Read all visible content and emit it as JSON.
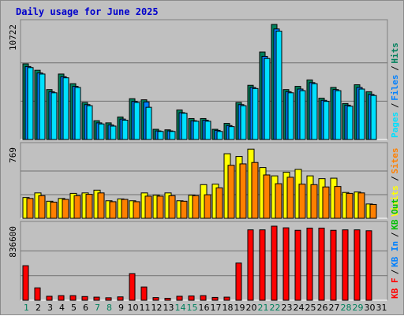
{
  "title": "Daily usage for June 2025",
  "colors": {
    "hits": "#00805c",
    "files": "#0080ff",
    "pages": "#00e0ff",
    "visits": "#ffff00",
    "sites": "#ff8000",
    "kbin": "#0080ff",
    "kbout": "#00c000",
    "kbf": "#ff0000",
    "bg": "#c0c0c0",
    "weekend": "#00805c",
    "weekday": "#000000"
  },
  "chart_data": [
    {
      "type": "bar",
      "name": "hits-files-pages",
      "x": [
        1,
        2,
        3,
        4,
        5,
        6,
        7,
        8,
        9,
        10,
        11,
        12,
        13,
        14,
        15,
        16,
        17,
        18,
        19,
        20,
        21,
        22,
        23,
        24,
        25,
        26,
        27,
        28,
        29,
        30,
        31
      ],
      "ymax_label": "10722",
      "ylim": [
        0,
        10722
      ],
      "legend": [
        "Pages",
        "Files",
        "Hits"
      ],
      "series": [
        {
          "name": "Hits",
          "values": [
            7050,
            6450,
            4650,
            6100,
            5200,
            3450,
            1750,
            1550,
            2100,
            3800,
            3700,
            950,
            900,
            2750,
            1950,
            1950,
            950,
            1500,
            3450,
            5050,
            8150,
            10722,
            4650,
            4950,
            5550,
            3850,
            4850,
            3350,
            5100,
            4450,
            0
          ]
        },
        {
          "name": "Files",
          "values": [
            6800,
            6200,
            4450,
            5850,
            4950,
            3250,
            1550,
            1350,
            1900,
            3550,
            3500,
            800,
            800,
            2500,
            1750,
            1800,
            850,
            1300,
            3250,
            4850,
            7750,
            10300,
            4450,
            4700,
            5300,
            3650,
            4650,
            3200,
            4850,
            4200,
            0
          ]
        },
        {
          "name": "Pages",
          "values": [
            6700,
            6100,
            4350,
            5750,
            4850,
            3150,
            1450,
            1250,
            1800,
            3450,
            3000,
            750,
            750,
            2450,
            1700,
            1700,
            750,
            1200,
            3150,
            4750,
            7550,
            10100,
            4350,
            4550,
            5200,
            3550,
            4550,
            3100,
            4700,
            4100,
            0
          ]
        }
      ]
    },
    {
      "type": "bar",
      "name": "visits-sites",
      "x": [
        1,
        2,
        3,
        4,
        5,
        6,
        7,
        8,
        9,
        10,
        11,
        12,
        13,
        14,
        15,
        16,
        17,
        18,
        19,
        20,
        21,
        22,
        23,
        24,
        25,
        26,
        27,
        28,
        29,
        30,
        31
      ],
      "ymax_label": "769",
      "ylim": [
        0,
        769
      ],
      "legend": [
        "Visits",
        "Sites"
      ],
      "series": [
        {
          "name": "Visits",
          "values": [
            225,
            275,
            185,
            215,
            270,
            275,
            305,
            190,
            210,
            190,
            275,
            250,
            275,
            190,
            250,
            365,
            370,
            700,
            670,
            750,
            550,
            460,
            500,
            530,
            460,
            430,
            435,
            280,
            285,
            155,
            0
          ]
        },
        {
          "name": "Sites",
          "values": [
            215,
            245,
            175,
            205,
            245,
            260,
            275,
            180,
            205,
            180,
            240,
            240,
            245,
            185,
            245,
            255,
            330,
            575,
            590,
            605,
            470,
            375,
            445,
            370,
            365,
            340,
            345,
            270,
            275,
            150,
            0
          ]
        }
      ]
    },
    {
      "type": "bar",
      "name": "kbin-kbout-kbf",
      "x": [
        1,
        2,
        3,
        4,
        5,
        6,
        7,
        8,
        9,
        10,
        11,
        12,
        13,
        14,
        15,
        16,
        17,
        18,
        19,
        20,
        21,
        22,
        23,
        24,
        25,
        26,
        27,
        28,
        29,
        30,
        31
      ],
      "ymax_label": "836600",
      "ylim": [
        0,
        836600
      ],
      "legend": [
        "KB F",
        "KB In",
        "KB Out"
      ],
      "series": [
        {
          "name": "KB F",
          "values": [
            390000,
            140000,
            45000,
            52000,
            52000,
            42000,
            35000,
            28000,
            38000,
            300000,
            150000,
            30000,
            22000,
            45000,
            48000,
            52000,
            32000,
            35000,
            420000,
            795000,
            795000,
            836600,
            818000,
            790000,
            815000,
            815000,
            790000,
            795000,
            795000,
            785000,
            0
          ]
        }
      ]
    }
  ],
  "legend_labels": {
    "panel1": [
      "Pages",
      "Files",
      "Hits"
    ],
    "panel2": [
      "Visits",
      "Sites"
    ],
    "panel3": [
      "KB F",
      "KB In",
      "KB Out"
    ],
    "separator": "/"
  },
  "days": [
    "1",
    "2",
    "3",
    "4",
    "5",
    "6",
    "7",
    "8",
    "9",
    "10",
    "11",
    "12",
    "13",
    "14",
    "15",
    "16",
    "17",
    "18",
    "19",
    "20",
    "21",
    "22",
    "23",
    "24",
    "25",
    "26",
    "27",
    "28",
    "29",
    "30",
    "31"
  ],
  "weekend_days": [
    1,
    7,
    8,
    14,
    15,
    21,
    22,
    28,
    29
  ]
}
